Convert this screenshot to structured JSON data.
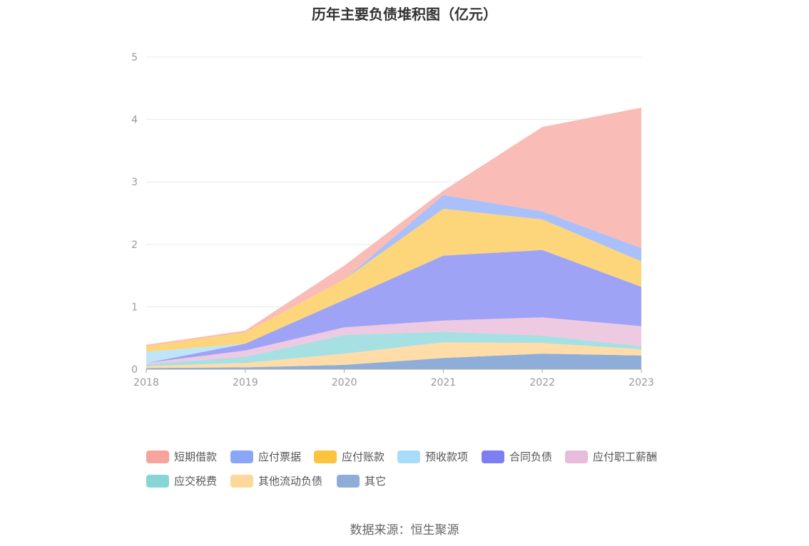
{
  "chart_data": {
    "type": "area",
    "title": "历年主要负债堆积图（亿元）",
    "x": [
      "2018",
      "2019",
      "2020",
      "2021",
      "2022",
      "2023"
    ],
    "ylim": [
      0,
      5
    ],
    "yticks": [
      "0",
      "1",
      "2",
      "3",
      "4",
      "5"
    ],
    "grid": true,
    "legend_position": "bottom",
    "series": [
      {
        "name": "其它",
        "color": "#8eaed9",
        "values": [
          0.02,
          0.03,
          0.07,
          0.18,
          0.25,
          0.22
        ]
      },
      {
        "name": "其他流动负债",
        "color": "#ffdca8",
        "values": [
          0.03,
          0.07,
          0.18,
          0.25,
          0.17,
          0.1
        ]
      },
      {
        "name": "应交税费",
        "color": "#a6e0e2",
        "values": [
          0.03,
          0.1,
          0.3,
          0.17,
          0.12,
          0.05
        ]
      },
      {
        "name": "应付职工薪酬",
        "color": "#eec9e2",
        "values": [
          0.02,
          0.1,
          0.12,
          0.18,
          0.29,
          0.32
        ]
      },
      {
        "name": "合同负债",
        "color": "#9ea3f6",
        "values": [
          0.0,
          0.11,
          0.44,
          1.04,
          1.08,
          0.63
        ]
      },
      {
        "name": "预收款项",
        "color": "#bfe6f8",
        "values": [
          0.18,
          0.0,
          0.0,
          0.0,
          0.0,
          0.0
        ]
      },
      {
        "name": "应付账款",
        "color": "#fdd57a",
        "values": [
          0.09,
          0.18,
          0.33,
          0.75,
          0.49,
          0.41
        ]
      },
      {
        "name": "应付票据",
        "color": "#a9c0fb",
        "values": [
          0.0,
          0.0,
          0.0,
          0.22,
          0.13,
          0.21
        ]
      },
      {
        "name": "短期借款",
        "color": "#f9bcb6",
        "values": [
          0.02,
          0.03,
          0.22,
          0.07,
          1.35,
          2.25
        ]
      }
    ],
    "legend": [
      {
        "name": "短期借款",
        "color": "#f7a49d"
      },
      {
        "name": "应付票据",
        "color": "#8aa7f7"
      },
      {
        "name": "应付账款",
        "color": "#fcc33f"
      },
      {
        "name": "预收款项",
        "color": "#a9ddf7"
      },
      {
        "name": "合同负债",
        "color": "#7b7ff1"
      },
      {
        "name": "应付职工薪酬",
        "color": "#e7bcdc"
      },
      {
        "name": "应交税费",
        "color": "#88d5d8"
      },
      {
        "name": "其他流动负债",
        "color": "#fed89a"
      },
      {
        "name": "其它",
        "color": "#8eaed9"
      }
    ],
    "source": "数据来源：恒生聚源"
  },
  "colors": {
    "grid": "#e6e8f0",
    "axis": "#999999",
    "tick_text": "#999999"
  }
}
